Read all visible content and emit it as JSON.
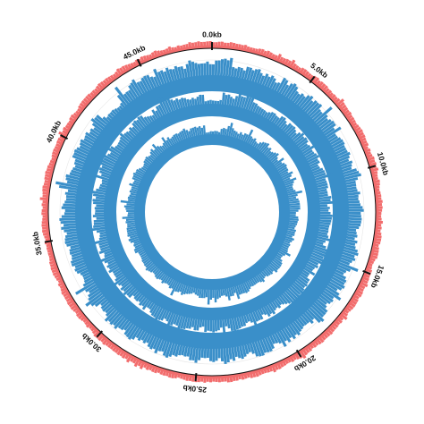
{
  "genome": {
    "total_kb": 48.5,
    "ticks": [
      {
        "kb": 0,
        "label": "0.0kb"
      },
      {
        "kb": 5,
        "label": "5.0kb"
      },
      {
        "kb": 10,
        "label": "10.0kb"
      },
      {
        "kb": 15,
        "label": "15.0kb"
      },
      {
        "kb": 20,
        "label": "20.0kb"
      },
      {
        "kb": 25,
        "label": "25.0kb"
      },
      {
        "kb": 30,
        "label": "30.0kb"
      },
      {
        "kb": 35,
        "label": "35.0kb"
      },
      {
        "kb": 40,
        "label": "40.0kb"
      },
      {
        "kb": 45,
        "label": "45.0kb"
      }
    ]
  },
  "tracks": [
    {
      "name": "",
      "type": "histogram",
      "color": "#f26d6d"
    },
    {
      "name": "",
      "type": "histogram",
      "color": "#3a8fc9"
    },
    {
      "name": "",
      "type": "histogram",
      "color": "#3a8fc9"
    },
    {
      "name": "",
      "type": "histogram",
      "color": "#3a8fc9"
    }
  ],
  "colors": {
    "outer_track": "#f26d6d",
    "inner_tracks": "#3a8fc9",
    "axis_circle": "#111111",
    "background": "#ffffff"
  }
}
